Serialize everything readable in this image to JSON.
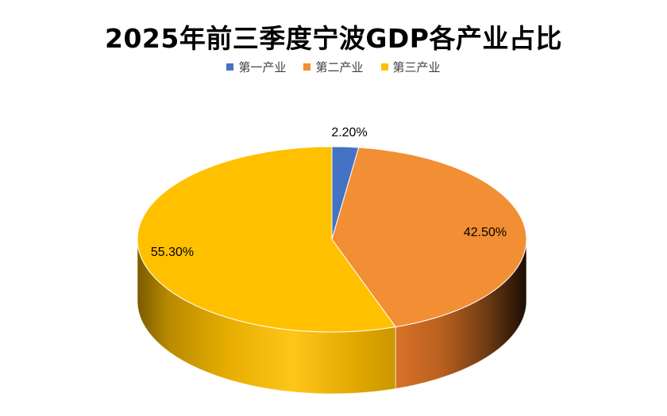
{
  "chart_data": {
    "type": "pie",
    "title": "2025年前三季度宁波GDP各产业占比",
    "legend_position": "top",
    "three_d": true,
    "slices": [
      {
        "name": "第一产业",
        "value": 2.2,
        "label": "2.20%",
        "color": "#4472c4"
      },
      {
        "name": "第二产业",
        "value": 42.5,
        "label": "42.50%",
        "color": "#f28e33"
      },
      {
        "name": "第三产业",
        "value": 55.3,
        "label": "55.30%",
        "color": "#ffc000"
      }
    ]
  }
}
